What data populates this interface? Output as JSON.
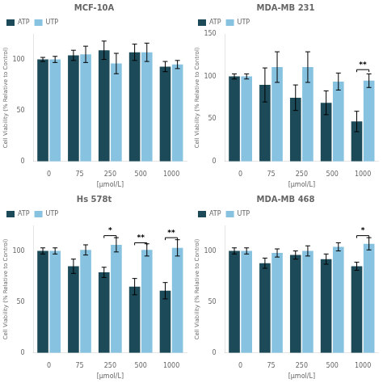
{
  "chart_data": [
    {
      "type": "bar",
      "title": "MCF-10A",
      "categories": [
        "0",
        "75",
        "250",
        "500",
        "1000"
      ],
      "series": [
        {
          "name": "ATP",
          "color": "#1c4a58",
          "values": [
            100,
            104,
            109,
            107,
            93
          ],
          "errors": [
            2,
            5,
            9,
            8,
            5
          ]
        },
        {
          "name": "UTP",
          "color": "#87c3e0",
          "values": [
            100,
            105,
            96,
            107,
            95
          ],
          "errors": [
            3,
            8,
            10,
            9,
            4
          ]
        }
      ],
      "xlabel": "[μmol/L]",
      "ylabel": "Cell Viability (% Relative to Control)",
      "ylim": [
        0,
        125
      ],
      "yticks": [
        0,
        50,
        100
      ],
      "grid": false,
      "legend": "upper left",
      "annotations": []
    },
    {
      "type": "bar",
      "title": "MDA-MB 231",
      "categories": [
        "0",
        "75",
        "250",
        "500",
        "1000"
      ],
      "series": [
        {
          "name": "ATP",
          "color": "#1c4a58",
          "values": [
            100,
            90,
            75,
            69,
            47
          ],
          "errors": [
            3,
            20,
            15,
            14,
            12
          ]
        },
        {
          "name": "UTP",
          "color": "#87c3e0",
          "values": [
            100,
            111,
            111,
            94,
            95
          ],
          "errors": [
            3,
            18,
            18,
            10,
            8
          ]
        }
      ],
      "xlabel": "[μmol/L]",
      "ylabel": "Cell Viability (% Relative to Control)",
      "ylim": [
        0,
        150
      ],
      "yticks": [
        0,
        50,
        100,
        150
      ],
      "grid": false,
      "legend": "upper left",
      "annotations": [
        {
          "x": "1000",
          "text": "**",
          "y_line": 108,
          "y_text": 109
        }
      ]
    },
    {
      "type": "bar",
      "title": "Hs 578t",
      "categories": [
        "0",
        "75",
        "250",
        "500",
        "1000"
      ],
      "series": [
        {
          "name": "ATP",
          "color": "#1c4a58",
          "values": [
            100,
            85,
            79,
            65,
            61
          ],
          "errors": [
            3,
            7,
            5,
            8,
            8
          ]
        },
        {
          "name": "UTP",
          "color": "#87c3e0",
          "values": [
            100,
            101,
            106,
            101,
            103
          ],
          "errors": [
            3,
            5,
            7,
            6,
            8
          ]
        }
      ],
      "xlabel": "[μmol/L]",
      "ylabel": "Cell Viability (% Relative to Control)",
      "ylim": [
        0,
        125
      ],
      "yticks": [
        0,
        50,
        100
      ],
      "grid": false,
      "legend": "upper left",
      "annotations": [
        {
          "x": "250",
          "text": "*",
          "y_line": 115,
          "y_text": 116
        },
        {
          "x": "500",
          "text": "**",
          "y_line": 108,
          "y_text": 109
        },
        {
          "x": "1000",
          "text": "**",
          "y_line": 113,
          "y_text": 114
        }
      ]
    },
    {
      "type": "bar",
      "title": "MDA-MB 468",
      "categories": [
        "0",
        "75",
        "250",
        "500",
        "1000"
      ],
      "series": [
        {
          "name": "ATP",
          "color": "#1c4a58",
          "values": [
            100,
            88,
            96,
            92,
            85
          ],
          "errors": [
            3,
            5,
            4,
            5,
            4
          ]
        },
        {
          "name": "UTP",
          "color": "#87c3e0",
          "values": [
            100,
            98,
            100,
            104,
            107
          ],
          "errors": [
            3,
            4,
            5,
            4,
            6
          ]
        }
      ],
      "xlabel": "[μmol/L]",
      "ylabel": "Cell Viability (% Relative to Control)",
      "ylim": [
        0,
        125
      ],
      "yticks": [
        0,
        50,
        100
      ],
      "grid": false,
      "legend": "upper left",
      "annotations": [
        {
          "x": "1000",
          "text": "*",
          "y_line": 115,
          "y_text": 116
        }
      ]
    }
  ]
}
